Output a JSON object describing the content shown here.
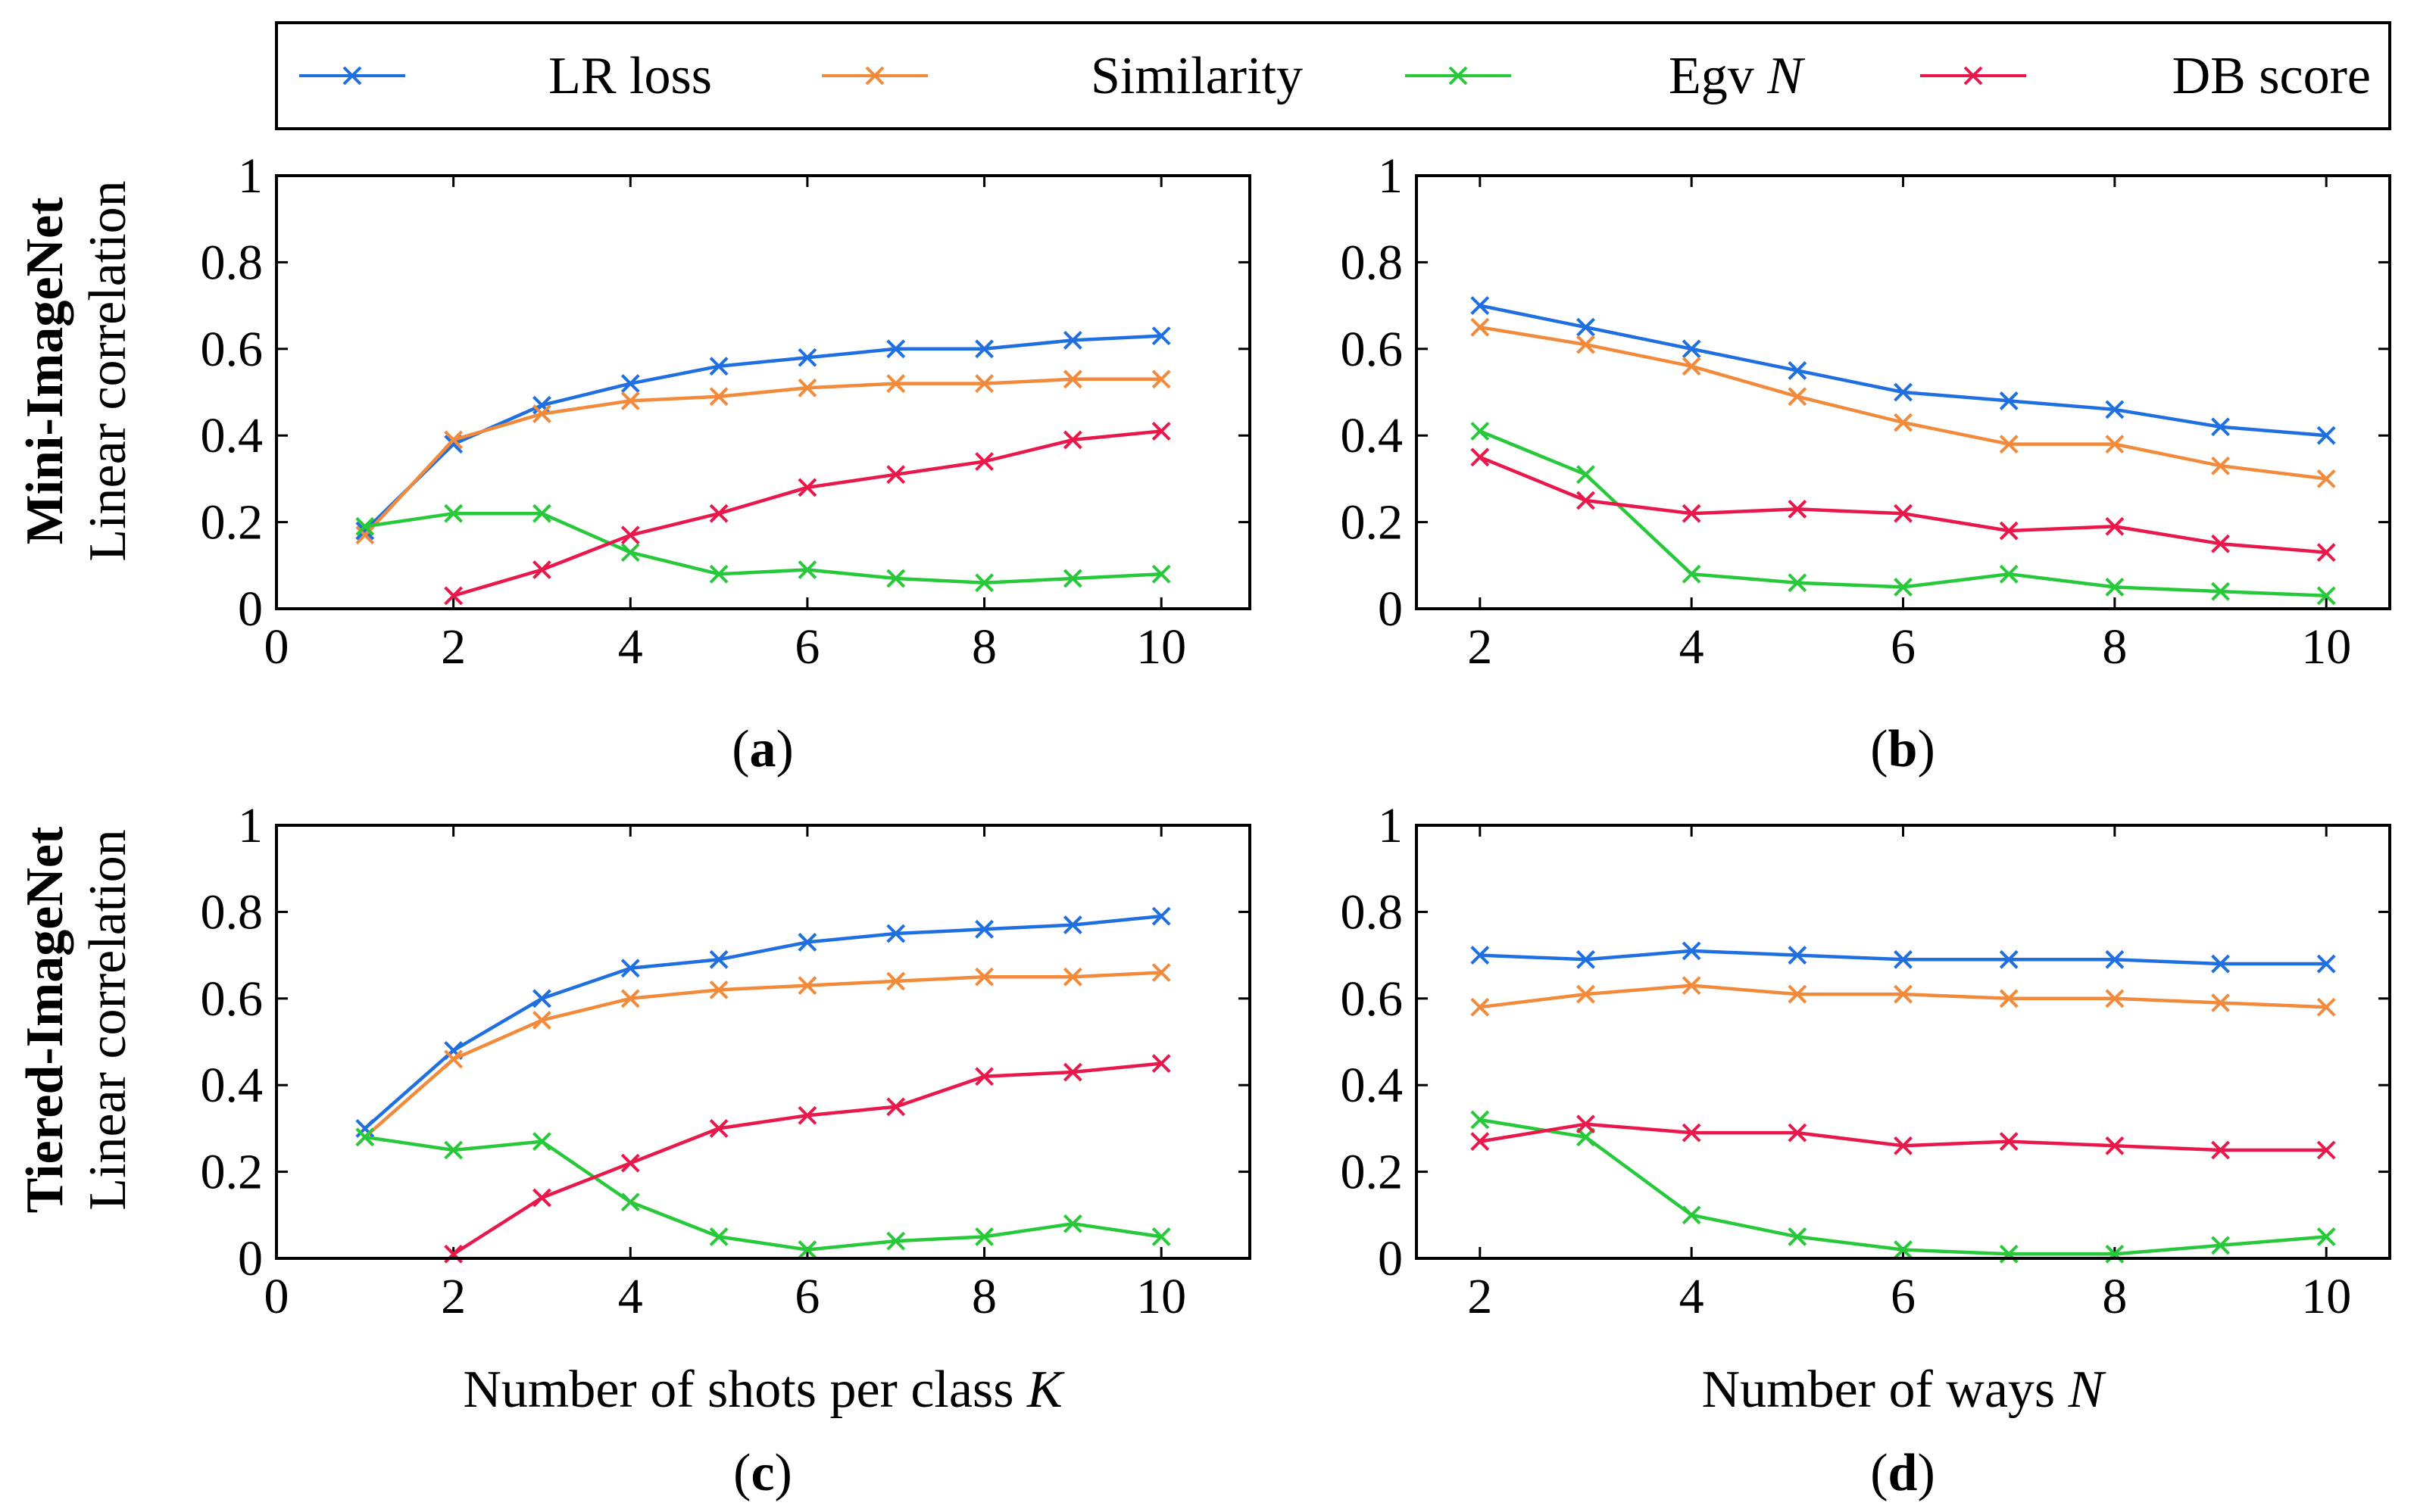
{
  "figure": {
    "row_labels": [
      "Mini-ImageNet",
      "Tiered-ImageNet"
    ],
    "y_axis_label": "Linear correlation",
    "legend": [
      {
        "key": "lr",
        "label": "LR loss",
        "italic_suffix": ""
      },
      {
        "key": "sim",
        "label": "Similarity",
        "italic_suffix": ""
      },
      {
        "key": "egv",
        "label": "Egv ",
        "italic_suffix": "N"
      },
      {
        "key": "db",
        "label": "DB score",
        "italic_suffix": ""
      }
    ],
    "colors": {
      "lr": "#1f6fe0",
      "sim": "#f28a3c",
      "egv": "#27c93a",
      "db": "#e8184a"
    }
  },
  "chart_data": [
    {
      "id": "a",
      "panel_label": "a",
      "type": "line",
      "xlabel": "",
      "xlabel_italic": "",
      "ylabel": "Linear correlation",
      "dataset": "Mini-ImageNet",
      "xlim": [
        0,
        11
      ],
      "ylim": [
        0,
        1
      ],
      "xticks": [
        0,
        2,
        4,
        6,
        8,
        10
      ],
      "yticks": [
        0,
        0.2,
        0.4,
        0.6,
        0.8,
        1
      ],
      "ytick_labels": [
        "0",
        "0.2",
        "0.4",
        "0.6",
        "0.8",
        "1"
      ],
      "series": [
        {
          "key": "lr",
          "name": "LR loss",
          "x": [
            1,
            2,
            3,
            4,
            5,
            6,
            7,
            8,
            9,
            10
          ],
          "values": [
            0.18,
            0.38,
            0.47,
            0.52,
            0.56,
            0.58,
            0.6,
            0.6,
            0.62,
            0.63
          ]
        },
        {
          "key": "sim",
          "name": "Similarity",
          "x": [
            1,
            2,
            3,
            4,
            5,
            6,
            7,
            8,
            9,
            10
          ],
          "values": [
            0.17,
            0.39,
            0.45,
            0.48,
            0.49,
            0.51,
            0.52,
            0.52,
            0.53,
            0.53
          ]
        },
        {
          "key": "egv",
          "name": "Egv N",
          "x": [
            1,
            2,
            3,
            4,
            5,
            6,
            7,
            8,
            9,
            10
          ],
          "values": [
            0.19,
            0.22,
            0.22,
            0.13,
            0.08,
            0.09,
            0.07,
            0.06,
            0.07,
            0.08
          ]
        },
        {
          "key": "db",
          "name": "DB score",
          "x": [
            2,
            3,
            4,
            5,
            6,
            7,
            8,
            9,
            10
          ],
          "values": [
            0.03,
            0.09,
            0.17,
            0.22,
            0.28,
            0.31,
            0.34,
            0.39,
            0.41
          ]
        }
      ]
    },
    {
      "id": "b",
      "panel_label": "b",
      "type": "line",
      "xlabel": "",
      "xlabel_italic": "",
      "ylabel": "",
      "dataset": "Mini-ImageNet",
      "xlim": [
        1.4,
        10.6
      ],
      "ylim": [
        0,
        1
      ],
      "xticks": [
        2,
        4,
        6,
        8,
        10
      ],
      "yticks": [
        0,
        0.2,
        0.4,
        0.6,
        0.8,
        1
      ],
      "ytick_labels": [
        "0",
        "0.2",
        "0.4",
        "0.6",
        "0.8",
        "1"
      ],
      "series": [
        {
          "key": "lr",
          "name": "LR loss",
          "x": [
            2,
            3,
            4,
            5,
            6,
            7,
            8,
            9,
            10
          ],
          "values": [
            0.7,
            0.65,
            0.6,
            0.55,
            0.5,
            0.48,
            0.46,
            0.42,
            0.4
          ]
        },
        {
          "key": "sim",
          "name": "Similarity",
          "x": [
            2,
            3,
            4,
            5,
            6,
            7,
            8,
            9,
            10
          ],
          "values": [
            0.65,
            0.61,
            0.56,
            0.49,
            0.43,
            0.38,
            0.38,
            0.33,
            0.3
          ]
        },
        {
          "key": "egv",
          "name": "Egv N",
          "x": [
            2,
            3,
            4,
            5,
            6,
            7,
            8,
            9,
            10
          ],
          "values": [
            0.41,
            0.31,
            0.08,
            0.06,
            0.05,
            0.08,
            0.05,
            0.04,
            0.03
          ]
        },
        {
          "key": "db",
          "name": "DB score",
          "x": [
            2,
            3,
            4,
            5,
            6,
            7,
            8,
            9,
            10
          ],
          "values": [
            0.35,
            0.25,
            0.22,
            0.23,
            0.22,
            0.18,
            0.19,
            0.15,
            0.13
          ]
        }
      ]
    },
    {
      "id": "c",
      "panel_label": "c",
      "type": "line",
      "xlabel": "Number of shots per class ",
      "xlabel_italic": "K",
      "ylabel": "Linear correlation",
      "dataset": "Tiered-ImageNet",
      "xlim": [
        0,
        11
      ],
      "ylim": [
        0,
        1
      ],
      "xticks": [
        0,
        2,
        4,
        6,
        8,
        10
      ],
      "yticks": [
        0,
        0.2,
        0.4,
        0.6,
        0.8,
        1
      ],
      "ytick_labels": [
        "0",
        "0.2",
        "0.4",
        "0.6",
        "0.8",
        "1"
      ],
      "series": [
        {
          "key": "lr",
          "name": "LR loss",
          "x": [
            1,
            2,
            3,
            4,
            5,
            6,
            7,
            8,
            9,
            10
          ],
          "values": [
            0.3,
            0.48,
            0.6,
            0.67,
            0.69,
            0.73,
            0.75,
            0.76,
            0.77,
            0.79
          ]
        },
        {
          "key": "sim",
          "name": "Similarity",
          "x": [
            1,
            2,
            3,
            4,
            5,
            6,
            7,
            8,
            9,
            10
          ],
          "values": [
            0.28,
            0.46,
            0.55,
            0.6,
            0.62,
            0.63,
            0.64,
            0.65,
            0.65,
            0.66
          ]
        },
        {
          "key": "egv",
          "name": "Egv N",
          "x": [
            1,
            2,
            3,
            4,
            5,
            6,
            7,
            8,
            9,
            10
          ],
          "values": [
            0.28,
            0.25,
            0.27,
            0.13,
            0.05,
            0.02,
            0.04,
            0.05,
            0.08,
            0.05
          ]
        },
        {
          "key": "db",
          "name": "DB score",
          "x": [
            2,
            3,
            4,
            5,
            6,
            7,
            8,
            9,
            10
          ],
          "values": [
            0.01,
            0.14,
            0.22,
            0.3,
            0.33,
            0.35,
            0.42,
            0.43,
            0.45
          ]
        }
      ]
    },
    {
      "id": "d",
      "panel_label": "d",
      "type": "line",
      "xlabel": "Number of ways ",
      "xlabel_italic": "N",
      "ylabel": "",
      "dataset": "Tiered-ImageNet",
      "xlim": [
        1.4,
        10.6
      ],
      "ylim": [
        0,
        1
      ],
      "xticks": [
        2,
        4,
        6,
        8,
        10
      ],
      "yticks": [
        0,
        0.2,
        0.4,
        0.6,
        0.8,
        1
      ],
      "ytick_labels": [
        "0",
        "0.2",
        "0.4",
        "0.6",
        "0.8",
        "1"
      ],
      "series": [
        {
          "key": "lr",
          "name": "LR loss",
          "x": [
            2,
            3,
            4,
            5,
            6,
            7,
            8,
            9,
            10
          ],
          "values": [
            0.7,
            0.69,
            0.71,
            0.7,
            0.69,
            0.69,
            0.69,
            0.68,
            0.68
          ]
        },
        {
          "key": "sim",
          "name": "Similarity",
          "x": [
            2,
            3,
            4,
            5,
            6,
            7,
            8,
            9,
            10
          ],
          "values": [
            0.58,
            0.61,
            0.63,
            0.61,
            0.61,
            0.6,
            0.6,
            0.59,
            0.58
          ]
        },
        {
          "key": "egv",
          "name": "Egv N",
          "x": [
            2,
            3,
            4,
            5,
            6,
            7,
            8,
            9,
            10
          ],
          "values": [
            0.32,
            0.28,
            0.1,
            0.05,
            0.02,
            0.01,
            0.01,
            0.03,
            0.05
          ]
        },
        {
          "key": "db",
          "name": "DB score",
          "x": [
            2,
            3,
            4,
            5,
            6,
            7,
            8,
            9,
            10
          ],
          "values": [
            0.27,
            0.31,
            0.29,
            0.29,
            0.26,
            0.27,
            0.26,
            0.25,
            0.25
          ]
        }
      ]
    }
  ]
}
